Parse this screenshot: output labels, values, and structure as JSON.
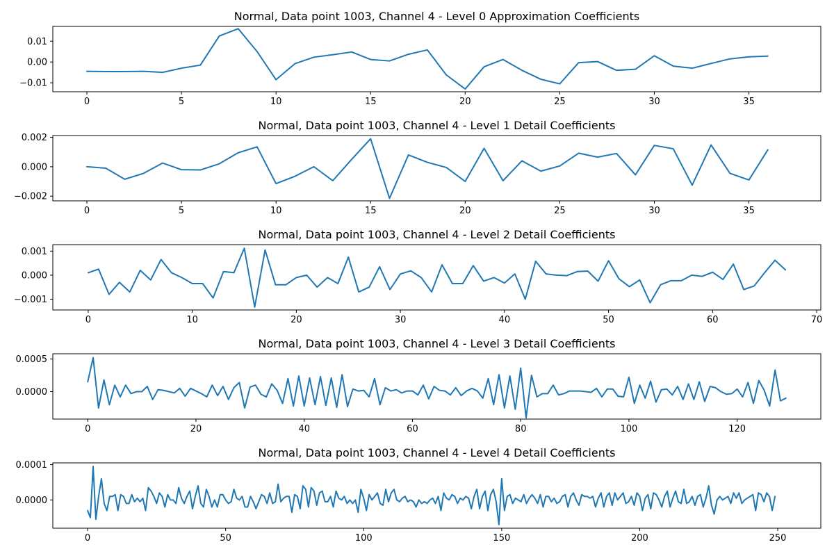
{
  "figure": {
    "background": "#ffffff",
    "line_color": "#1f77b4"
  },
  "chart_data": [
    {
      "type": "line",
      "title": "Normal, Data point 1003, Channel 4 - Level 0 Approximation Coefficients",
      "xlabel": "",
      "ylabel": "",
      "xlim": [
        -1.8,
        38.8
      ],
      "ylim": [
        -0.0143,
        0.0171
      ],
      "xticks": [
        0,
        5,
        10,
        15,
        20,
        25,
        30,
        35
      ],
      "yticks": [
        -0.01,
        0.0,
        0.01
      ],
      "ytick_labels": [
        "−0.01",
        "0.00",
        "0.01"
      ],
      "grid": false,
      "series": [
        {
          "color": "#1f77b4",
          "x_start": 0,
          "x_step": 1,
          "values": [
            -0.0045,
            -0.0046,
            -0.0046,
            -0.0045,
            -0.005,
            -0.003,
            -0.0015,
            0.0125,
            0.016,
            0.005,
            -0.0085,
            -0.0008,
            0.0023,
            0.0035,
            0.0048,
            0.0012,
            0.0005,
            0.0037,
            0.0058,
            -0.0062,
            -0.013,
            -0.0023,
            0.0012,
            -0.004,
            -0.0083,
            -0.0105,
            -0.0003,
            0.0002,
            -0.004,
            -0.0035,
            0.003,
            -0.002,
            -0.003,
            -0.0007,
            0.0015,
            0.0025,
            0.0028
          ]
        }
      ]
    },
    {
      "type": "line",
      "title": "Normal, Data point 1003, Channel 4 - Level 1 Detail Coefficients",
      "xlabel": "",
      "ylabel": "",
      "xlim": [
        -1.8,
        38.8
      ],
      "ylim": [
        -0.00232,
        0.00212
      ],
      "xticks": [
        0,
        5,
        10,
        15,
        20,
        25,
        30,
        35
      ],
      "yticks": [
        -0.002,
        0.0,
        0.002
      ],
      "ytick_labels": [
        "−0.002",
        "0.000",
        "0.002"
      ],
      "grid": false,
      "series": [
        {
          "color": "#1f77b4",
          "x_start": 0,
          "x_step": 1,
          "values": [
            0.0,
            -0.0001,
            -0.00085,
            -0.00045,
            0.00025,
            -0.0002,
            -0.00022,
            0.0002,
            0.00095,
            0.00135,
            -0.00115,
            -0.00065,
            0.0,
            -0.00095,
            0.0005,
            0.0019,
            -0.00215,
            0.0008,
            0.0003,
            -5e-05,
            -0.001,
            0.00125,
            -0.00095,
            0.0004,
            -0.0003,
            5e-05,
            0.00092,
            0.00065,
            0.0009,
            -0.00055,
            0.00145,
            0.00122,
            -0.00125,
            0.00148,
            -0.00045,
            -0.0009,
            0.00115
          ]
        }
      ]
    },
    {
      "type": "line",
      "title": "Normal, Data point 1003, Channel 4 - Level 2 Detail Coefficients",
      "xlabel": "",
      "ylabel": "",
      "xlim": [
        -3.4,
        70.4
      ],
      "ylim": [
        -0.00145,
        0.00127
      ],
      "xticks": [
        0,
        10,
        20,
        30,
        40,
        50,
        60,
        70
      ],
      "yticks": [
        -0.001,
        0.0,
        0.001
      ],
      "ytick_labels": [
        "−0.001",
        "0.000",
        "0.001"
      ],
      "grid": false,
      "series": [
        {
          "color": "#1f77b4",
          "x_start": 0,
          "x_step": 1,
          "values": [
            0.0001,
            0.00025,
            -0.0008,
            -0.0003,
            -0.0007,
            0.0002,
            -0.0002,
            0.00065,
            0.0001,
            -0.0001,
            -0.00035,
            -0.00035,
            -0.00095,
            0.00015,
            0.0001,
            0.00112,
            -0.00133,
            0.00105,
            -0.0004,
            -0.0004,
            -0.0001,
            0.0,
            -0.0005,
            -0.0001,
            -0.00035,
            0.00075,
            -0.0007,
            -0.0005,
            0.00035,
            -0.0006,
            5e-05,
            0.00018,
            -0.0001,
            -0.0007,
            0.00043,
            -0.00035,
            -0.00035,
            0.0004,
            -0.00025,
            -0.0001,
            -0.00033,
            5e-05,
            -0.001,
            0.00058,
            5e-05,
            0.0,
            -2e-05,
            0.00015,
            0.00017,
            -0.00025,
            0.0006,
            -0.00015,
            -0.00048,
            -0.0002,
            -0.00115,
            -0.0004,
            -0.00023,
            -0.00023,
            0.0,
            -5e-05,
            0.00012,
            -0.00018,
            0.00046,
            -0.0006,
            -0.00045,
            0.0001,
            0.00062,
            0.00022
          ]
        }
      ]
    },
    {
      "type": "line",
      "title": "Normal, Data point 1003, Channel 4 - Level 3 Detail Coefficients",
      "xlabel": "",
      "ylabel": "",
      "xlim": [
        -6.45,
        135.45
      ],
      "ylim": [
        -0.00042,
        0.00058
      ],
      "xticks": [
        0,
        20,
        40,
        60,
        80,
        100,
        120
      ],
      "yticks": [
        0.0,
        0.0005
      ],
      "ytick_labels": [
        "0.0000",
        "0.0005"
      ],
      "grid": false,
      "series": [
        {
          "color": "#1f77b4",
          "x_start": 0,
          "x_step": 1,
          "values": [
            0.00015,
            0.00052,
            -0.00025,
            0.00018,
            -0.0002,
            0.0001,
            -8e-05,
            0.0001,
            -3e-05,
            0.0,
            0.0,
            8e-05,
            -0.00012,
            3e-05,
            2e-05,
            0.0,
            -2e-05,
            5e-05,
            -7e-05,
            5e-05,
            1e-05,
            -3e-05,
            -8e-05,
            0.0001,
            -6e-05,
            8e-05,
            -0.00012,
            6e-05,
            0.00014,
            -0.00025,
            7e-05,
            0.0001,
            -4e-05,
            -8e-05,
            0.00012,
            2e-05,
            -0.00018,
            0.0002,
            -0.00022,
            0.00024,
            -0.00022,
            0.00021,
            -0.0002,
            0.00023,
            -0.00021,
            0.00021,
            -0.00024,
            0.00026,
            -0.00023,
            4e-05,
            1e-05,
            2e-05,
            -8e-05,
            0.0002,
            -0.0002,
            6e-05,
            1e-05,
            3e-05,
            -2e-05,
            1e-05,
            1e-05,
            -5e-05,
            0.0001,
            -0.00011,
            8e-05,
            2e-05,
            1e-05,
            -5e-05,
            6e-05,
            -6e-05,
            1e-05,
            5e-05,
            1e-05,
            -0.0001,
            0.0002,
            -0.0002,
            0.00026,
            -0.00025,
            0.00024,
            -0.00027,
            0.00036,
            -0.0004,
            0.00025,
            -8e-05,
            -3e-05,
            -3e-05,
            0.0001,
            -5e-05,
            -3e-05,
            1e-05,
            1e-05,
            1e-05,
            0.0,
            -1e-05,
            5e-05,
            -8e-05,
            4e-05,
            4e-05,
            -7e-05,
            -8e-05,
            0.00022,
            -0.00018,
            0.0001,
            -0.0001,
            0.00016,
            -0.00016,
            3e-05,
            4e-05,
            -5e-05,
            8e-05,
            -0.00012,
            0.00012,
            -0.00012,
            0.00015,
            -0.00015,
            8e-05,
            6e-05,
            0.0,
            -4e-05,
            -3e-05,
            4e-05,
            -8e-05,
            0.00014,
            -0.00018,
            0.00017,
            2e-05,
            -0.00022,
            0.00033,
            -0.00014,
            -0.0001
          ]
        }
      ]
    },
    {
      "type": "line",
      "title": "Normal, Data point 1003, Channel 4 - Level 4 Detail Coefficients",
      "xlabel": "",
      "ylabel": "",
      "xlim": [
        -12.6,
        265.6
      ],
      "ylim": [
        -8e-05,
        0.000105
      ],
      "xticks": [
        0,
        50,
        100,
        150,
        200,
        250
      ],
      "yticks": [
        0.0,
        0.0001
      ],
      "ytick_labels": [
        "0.0000",
        "0.0001"
      ],
      "grid": false,
      "series": [
        {
          "color": "#1f77b4",
          "x_start": 0,
          "x_step": 1,
          "values": [
            -3e-05,
            -5e-05,
            9.5e-05,
            -5.5e-05,
            1e-05,
            6e-05,
            -1e-05,
            -3e-05,
            1e-05,
            1e-05,
            1.5e-05,
            -3e-05,
            1.5e-05,
            1e-05,
            -1e-05,
            -1e-05,
            1.5e-05,
            -5e-06,
            5e-06,
            -5e-06,
            5e-06,
            -3e-05,
            3.5e-05,
            2.5e-05,
            1e-05,
            -1e-05,
            2e-05,
            1e-05,
            -2e-05,
            1.5e-05,
            0.0,
            0.0,
            -1e-05,
            3.5e-05,
            5e-06,
            -1e-05,
            1e-05,
            2.5e-05,
            -2.5e-05,
            1e-05,
            4e-05,
            -1e-05,
            -2e-05,
            3e-05,
            1e-05,
            -2e-05,
            0.0,
            -2e-05,
            1.5e-05,
            1.5e-05,
            0.0,
            -1e-05,
            -5e-06,
            3e-05,
            5e-06,
            0.0,
            1e-05,
            -2e-05,
            -2e-05,
            1e-05,
            -5e-06,
            -2.5e-05,
            -5e-06,
            1.5e-05,
            1e-05,
            -1e-05,
            2e-05,
            -1e-05,
            -5e-06,
            4.5e-05,
            -5e-06,
            5e-06,
            1e-05,
            1e-05,
            -3.5e-05,
            1.5e-05,
            1e-05,
            -2.5e-05,
            4e-05,
            3e-05,
            -2e-05,
            3.5e-05,
            2.5e-05,
            -1.5e-05,
            2e-05,
            2.5e-05,
            -5e-06,
            -5e-06,
            1e-05,
            -2e-05,
            2.5e-05,
            5e-06,
            0.0,
            1e-05,
            -1e-05,
            0.0,
            -1e-05,
            0.0,
            -3.5e-05,
            3e-05,
            5e-06,
            -3e-05,
            1.5e-05,
            0.0,
            1e-05,
            2e-05,
            -1e-05,
            -1.5e-05,
            3e-05,
            -5e-06,
            2e-05,
            3e-05,
            0.0,
            -5e-06,
            5e-06,
            1e-05,
            -5e-06,
            0.0,
            -5e-06,
            -2e-05,
            0.0,
            -1e-05,
            -5e-06,
            -1e-05,
            0.0,
            5e-06,
            -1e-05,
            1e-05,
            -3e-05,
            2e-05,
            5e-06,
            0.0,
            1.5e-05,
            1e-05,
            -1e-05,
            5e-06,
            0.0,
            1e-05,
            5e-06,
            -2.5e-05,
            1e-05,
            3e-05,
            -2.5e-05,
            1e-05,
            2.5e-05,
            -3e-05,
            1.5e-05,
            3e-05,
            -5e-06,
            -7e-05,
            6e-05,
            -3e-05,
            1e-05,
            1.5e-05,
            -1e-05,
            5e-06,
            0.0,
            -5e-06,
            1.5e-05,
            -1e-05,
            5e-06,
            1.5e-05,
            5e-06,
            -1e-05,
            1.5e-05,
            -2e-05,
            1e-05,
            1e-05,
            -5e-06,
            5e-06,
            -1e-05,
            -5e-06,
            1e-05,
            1.5e-05,
            -2e-05,
            1e-05,
            2e-05,
            0.0,
            -1.5e-05,
            1.5e-05,
            1e-05,
            1e-05,
            5e-06,
            1e-05,
            -2e-05,
            5e-06,
            2e-05,
            -2e-05,
            1e-05,
            2e-05,
            -1.5e-05,
            2e-05,
            0.0,
            1e-05,
            2e-05,
            -1e-05,
            -5e-06,
            1e-05,
            -1.5e-05,
            2e-05,
            1e-05,
            -3e-05,
            5e-06,
            1.5e-05,
            -2.5e-05,
            2e-05,
            1.5e-05,
            0.0,
            -2e-05,
            1e-05,
            2.5e-05,
            -2e-05,
            5e-06,
            2.5e-05,
            -5e-06,
            -1e-05,
            3e-05,
            -1e-05,
            -5e-06,
            1e-05,
            -1.5e-05,
            1e-05,
            1.5e-05,
            -2e-05,
            5e-06,
            4e-05,
            -1.5e-05,
            -4e-05,
            0.0,
            1e-05,
            0.0,
            5e-06,
            1e-05,
            -1e-05,
            2e-05,
            5e-06,
            2e-05,
            -1e-05,
            0.0,
            5e-06,
            1e-05,
            1.5e-05,
            -3e-05,
            2e-05,
            1.5e-05,
            -5e-06,
            2e-05,
            1e-05,
            -3e-05,
            1e-05
          ]
        }
      ]
    }
  ]
}
